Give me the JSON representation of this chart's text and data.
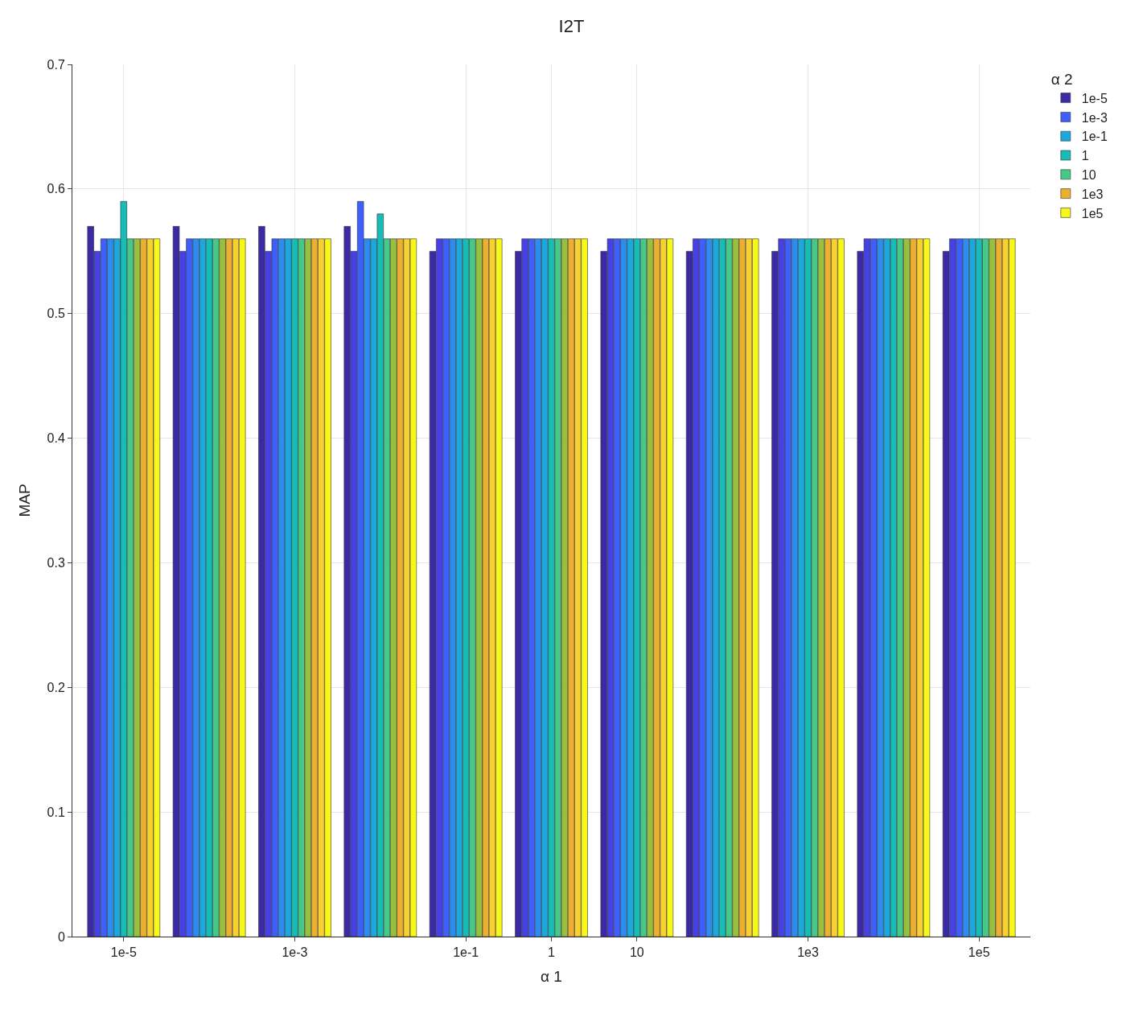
{
  "chart_data": {
    "type": "bar",
    "title": "I2T",
    "xlabel": "α 1",
    "ylabel": "MAP",
    "legend_title": "α 2",
    "categories": [
      "1e-5",
      null,
      "1e-3",
      null,
      "1e-1",
      "1",
      "10",
      null,
      "1e3",
      null,
      "1e5"
    ],
    "ylim": [
      0,
      0.7
    ],
    "yticks": [
      0,
      0.1,
      0.2,
      0.3,
      0.4,
      0.5,
      0.6,
      0.7
    ],
    "grid": true,
    "legend": "right",
    "series": [
      {
        "name": "1e-5",
        "color": "#3b2aa6",
        "values": [
          0.57,
          0.57,
          0.57,
          0.57,
          0.55,
          0.55,
          0.55,
          0.55,
          0.55,
          0.55,
          0.55
        ]
      },
      {
        "color": "#4641e6",
        "values": [
          0.55,
          0.55,
          0.55,
          0.55,
          0.56,
          0.56,
          0.56,
          0.56,
          0.56,
          0.56,
          0.56
        ]
      },
      {
        "name": "1e-3",
        "color": "#3f5ffc",
        "values": [
          0.56,
          0.56,
          0.56,
          0.59,
          0.56,
          0.56,
          0.56,
          0.56,
          0.56,
          0.56,
          0.56
        ]
      },
      {
        "color": "#2d8cf0",
        "values": [
          0.56,
          0.56,
          0.56,
          0.56,
          0.56,
          0.56,
          0.56,
          0.56,
          0.56,
          0.56,
          0.56
        ]
      },
      {
        "name": "1e-1",
        "color": "#1ba8dc",
        "values": [
          0.56,
          0.56,
          0.56,
          0.56,
          0.56,
          0.56,
          0.56,
          0.56,
          0.56,
          0.56,
          0.56
        ]
      },
      {
        "name": "1",
        "color": "#16bcb6",
        "values": [
          0.59,
          0.56,
          0.56,
          0.58,
          0.56,
          0.56,
          0.56,
          0.56,
          0.56,
          0.56,
          0.56
        ]
      },
      {
        "name": "10",
        "color": "#45c888",
        "values": [
          0.56,
          0.56,
          0.56,
          0.56,
          0.56,
          0.56,
          0.56,
          0.56,
          0.56,
          0.56,
          0.56
        ]
      },
      {
        "color": "#98c03e",
        "values": [
          0.56,
          0.56,
          0.56,
          0.56,
          0.56,
          0.56,
          0.56,
          0.56,
          0.56,
          0.56,
          0.56
        ]
      },
      {
        "name": "1e3",
        "color": "#ecb030",
        "values": [
          0.56,
          0.56,
          0.56,
          0.56,
          0.56,
          0.56,
          0.56,
          0.56,
          0.56,
          0.56,
          0.56
        ]
      },
      {
        "color": "#f8d030",
        "values": [
          0.56,
          0.56,
          0.56,
          0.56,
          0.56,
          0.56,
          0.56,
          0.56,
          0.56,
          0.56,
          0.56
        ]
      },
      {
        "name": "1e5",
        "color": "#f8f818",
        "values": [
          0.56,
          0.56,
          0.56,
          0.56,
          0.56,
          0.56,
          0.56,
          0.56,
          0.56,
          0.56,
          0.56
        ]
      }
    ]
  }
}
